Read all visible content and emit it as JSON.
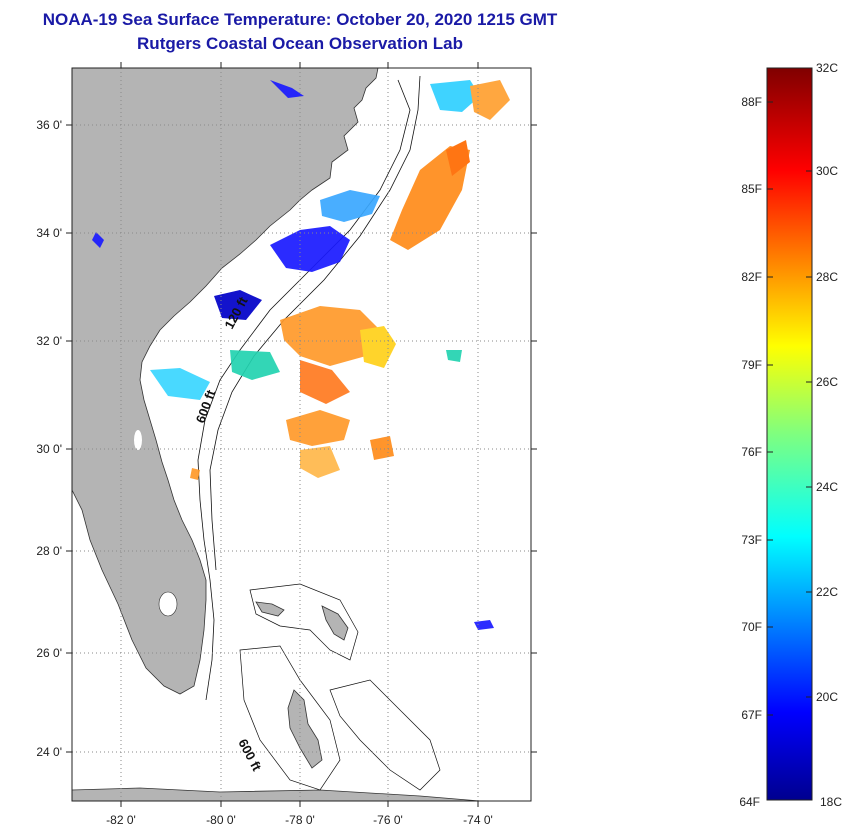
{
  "title": {
    "line1": "NOAA-19 Sea Surface Temperature:  October 20, 2020 1215 GMT",
    "line2": "Rutgers Coastal Ocean Observation Lab"
  },
  "map": {
    "lat_labels": [
      "36 0'",
      "34 0'",
      "32 0'",
      "30 0'",
      "28 0'",
      "26 0'",
      "24 0'"
    ],
    "lon_labels": [
      "-82 0'",
      "-80 0'",
      "-78 0'",
      "-76 0'",
      "-74 0'"
    ],
    "isobaths": [
      "120 ft",
      "600 ft",
      "600 ft"
    ],
    "colors": {
      "land": "#b4b4b4",
      "ocean": "#ffffff",
      "grid": "#8a8a8a"
    }
  },
  "colorbar": {
    "top_label": "32C",
    "bottom_label_f": "64F",
    "bottom_label_c": "18C",
    "f_labels": [
      "88F",
      "85F",
      "82F",
      "79F",
      "76F",
      "73F",
      "70F",
      "67F"
    ],
    "c_labels": [
      "30C",
      "28C",
      "26C",
      "24C",
      "22C",
      "20C"
    ]
  },
  "chart_data": {
    "type": "heatmap",
    "lat_range": [
      23,
      37
    ],
    "lon_range": [
      -83,
      -73
    ],
    "color_scale_c": [
      18,
      32
    ],
    "color_scale_f": [
      64,
      90
    ]
  }
}
